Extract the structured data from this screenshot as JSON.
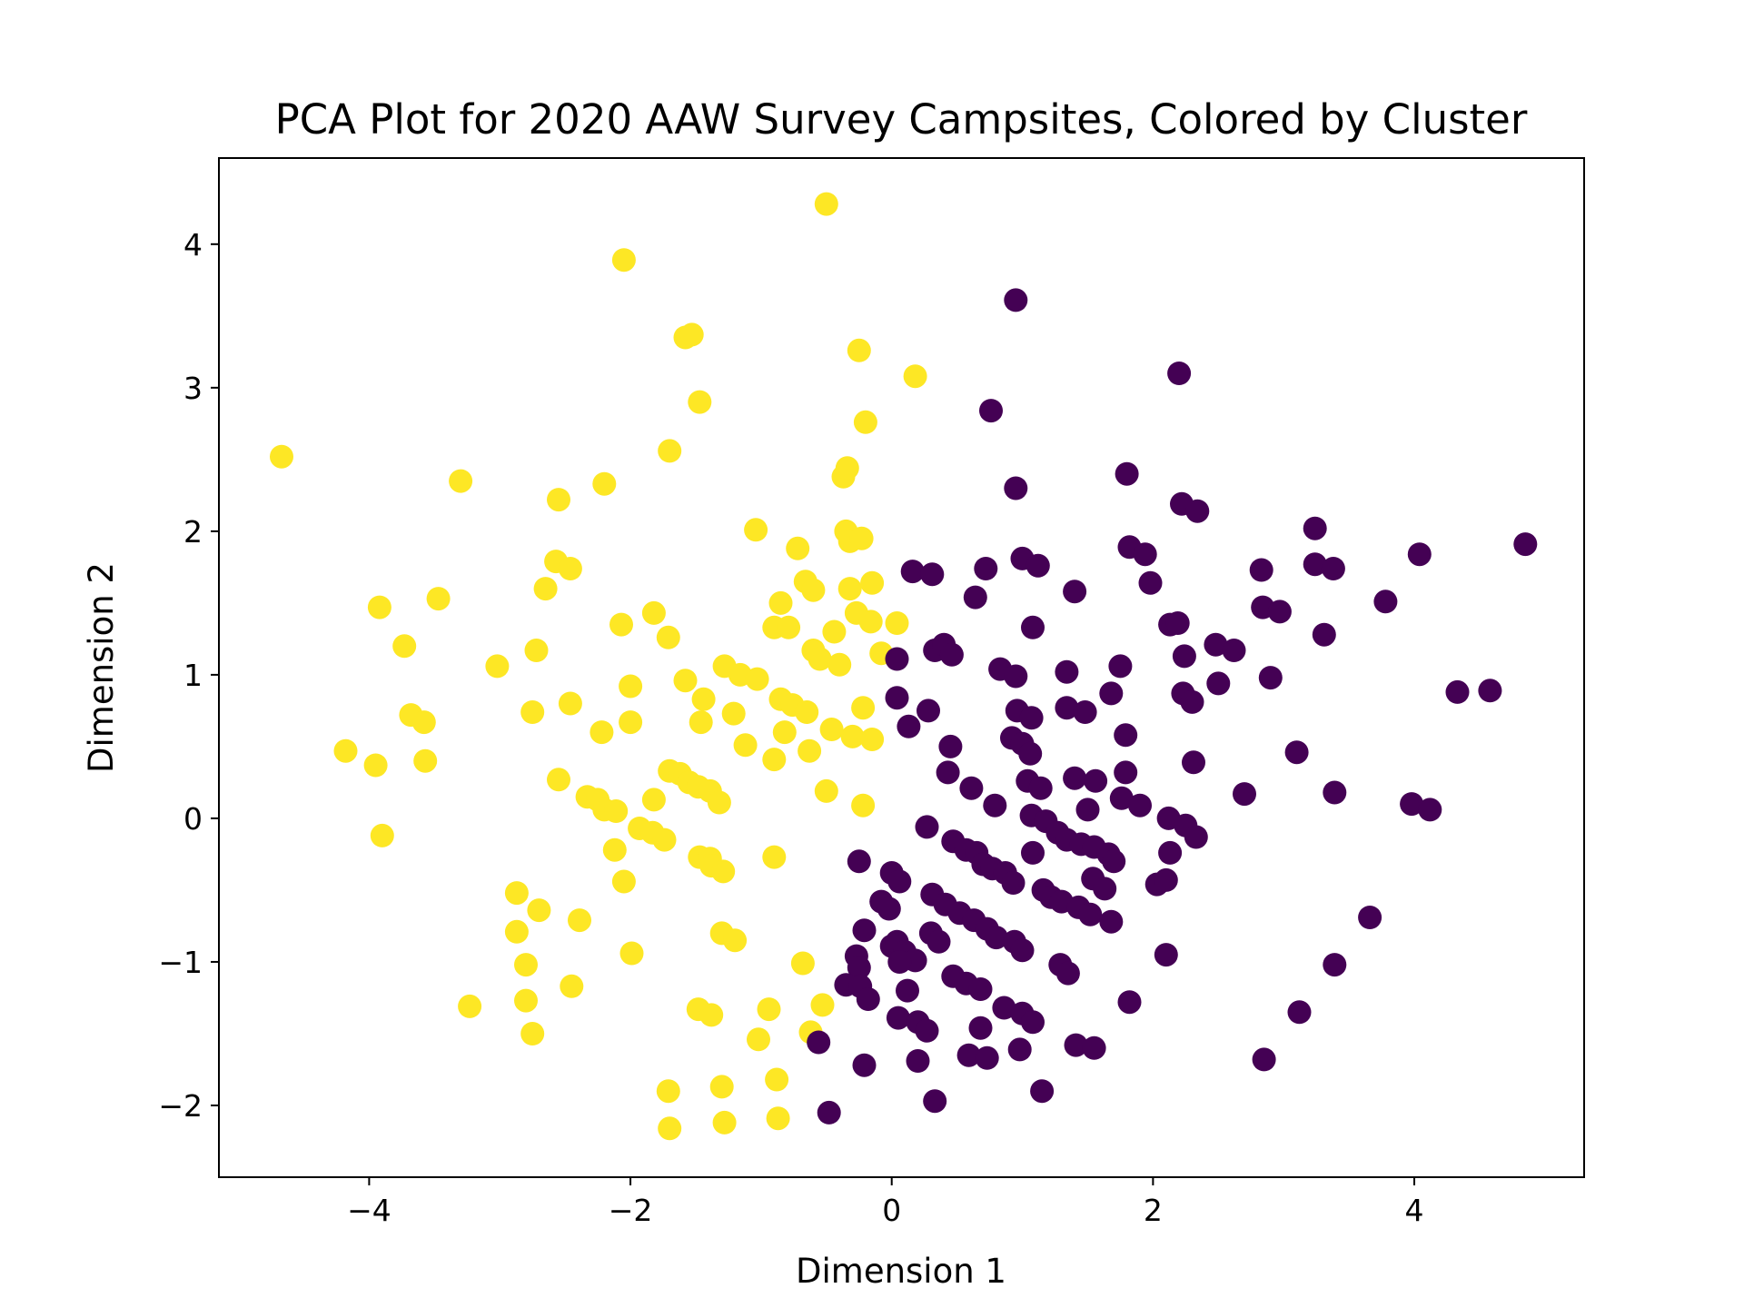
{
  "chart_data": {
    "type": "scatter",
    "title": "PCA Plot for 2020 AAW Survey Campsites, Colored by Cluster",
    "xlabel": "Dimension 1",
    "ylabel": "Dimension 2",
    "xlim": [
      -5.15,
      5.3
    ],
    "ylim": [
      -2.5,
      4.6
    ],
    "x_ticks": [
      -4,
      -2,
      0,
      2,
      4
    ],
    "x_tick_labels": [
      "−4",
      "−2",
      "0",
      "2",
      "4"
    ],
    "y_ticks": [
      -2,
      -1,
      0,
      1,
      2,
      3,
      4
    ],
    "y_tick_labels": [
      "−2",
      "−1",
      "0",
      "1",
      "2",
      "3",
      "4"
    ],
    "grid": false,
    "legend": "none",
    "series": [
      {
        "color": "#fde725",
        "points": [
          [
            -4.67,
            2.52
          ],
          [
            -3.92,
            1.47
          ],
          [
            -3.47,
            1.53
          ],
          [
            -3.3,
            2.35
          ],
          [
            -3.73,
            1.2
          ],
          [
            -3.68,
            0.72
          ],
          [
            -3.58,
            0.67
          ],
          [
            -3.57,
            0.4
          ],
          [
            -4.18,
            0.47
          ],
          [
            -3.95,
            0.37
          ],
          [
            -3.9,
            -0.12
          ],
          [
            -3.23,
            -1.31
          ],
          [
            -3.02,
            1.06
          ],
          [
            -2.87,
            -0.52
          ],
          [
            -2.87,
            -0.79
          ],
          [
            -2.8,
            -1.02
          ],
          [
            -2.8,
            -1.27
          ],
          [
            -2.75,
            -1.5
          ],
          [
            -2.7,
            -0.64
          ],
          [
            -2.72,
            1.17
          ],
          [
            -2.75,
            0.74
          ],
          [
            -2.65,
            1.6
          ],
          [
            -2.57,
            1.79
          ],
          [
            -2.46,
            1.74
          ],
          [
            -2.55,
            2.22
          ],
          [
            -2.55,
            0.27
          ],
          [
            -2.46,
            0.8
          ],
          [
            -2.45,
            -1.17
          ],
          [
            -2.39,
            -0.71
          ],
          [
            -2.33,
            0.15
          ],
          [
            -2.25,
            0.13
          ],
          [
            -2.2,
            2.33
          ],
          [
            -2.2,
            0.06
          ],
          [
            -2.11,
            0.05
          ],
          [
            -2.22,
            0.6
          ],
          [
            -2.12,
            -0.22
          ],
          [
            -2.05,
            3.89
          ],
          [
            -2.05,
            -0.44
          ],
          [
            -1.99,
            -0.94
          ],
          [
            -2.0,
            0.92
          ],
          [
            -2.0,
            0.67
          ],
          [
            -2.07,
            1.35
          ],
          [
            -1.93,
            -0.07
          ],
          [
            -1.83,
            -0.1
          ],
          [
            -1.74,
            -0.15
          ],
          [
            -1.82,
            0.13
          ],
          [
            -1.82,
            1.43
          ],
          [
            -1.71,
            1.26
          ],
          [
            -1.7,
            2.56
          ],
          [
            -1.7,
            0.33
          ],
          [
            -1.62,
            0.31
          ],
          [
            -1.55,
            0.25
          ],
          [
            -1.48,
            0.22
          ],
          [
            -1.58,
            3.35
          ],
          [
            -1.53,
            3.37
          ],
          [
            -1.58,
            0.96
          ],
          [
            -1.47,
            2.9
          ],
          [
            -1.47,
            -0.27
          ],
          [
            -1.46,
            0.67
          ],
          [
            -1.44,
            0.83
          ],
          [
            -1.39,
            -0.28
          ],
          [
            -1.38,
            -0.33
          ],
          [
            -1.39,
            0.19
          ],
          [
            -1.32,
            0.11
          ],
          [
            -1.29,
            -0.37
          ],
          [
            -1.3,
            -0.8
          ],
          [
            -1.2,
            -0.85
          ],
          [
            -1.71,
            -1.9
          ],
          [
            -1.7,
            -2.16
          ],
          [
            -1.48,
            -1.33
          ],
          [
            -1.38,
            -1.37
          ],
          [
            -1.3,
            -1.87
          ],
          [
            -1.28,
            -2.12
          ],
          [
            -1.28,
            1.06
          ],
          [
            -1.21,
            0.73
          ],
          [
            -1.16,
            1.0
          ],
          [
            -1.12,
            0.51
          ],
          [
            -1.03,
            0.97
          ],
          [
            -1.04,
            2.01
          ],
          [
            -1.02,
            -1.54
          ],
          [
            -0.94,
            -1.33
          ],
          [
            -0.9,
            -0.27
          ],
          [
            -0.9,
            0.41
          ],
          [
            -0.9,
            1.33
          ],
          [
            -0.85,
            0.83
          ],
          [
            -0.85,
            1.5
          ],
          [
            -0.79,
            1.33
          ],
          [
            -0.82,
            0.6
          ],
          [
            -0.76,
            0.79
          ],
          [
            -0.72,
            1.88
          ],
          [
            -0.88,
            -1.82
          ],
          [
            -0.87,
            -2.09
          ],
          [
            -0.68,
            -1.01
          ],
          [
            -0.66,
            1.65
          ],
          [
            -0.65,
            0.74
          ],
          [
            -0.63,
            0.47
          ],
          [
            -0.6,
            1.17
          ],
          [
            -0.6,
            1.59
          ],
          [
            -0.62,
            -1.49
          ],
          [
            -0.55,
            1.11
          ],
          [
            -0.53,
            -1.3
          ],
          [
            -0.5,
            4.28
          ],
          [
            -0.5,
            0.19
          ],
          [
            -0.46,
            0.62
          ],
          [
            -0.44,
            1.3
          ],
          [
            -0.4,
            1.07
          ],
          [
            -0.37,
            2.38
          ],
          [
            -0.34,
            2.44
          ],
          [
            -0.35,
            2.0
          ],
          [
            -0.32,
            1.93
          ],
          [
            -0.32,
            1.6
          ],
          [
            -0.3,
            0.57
          ],
          [
            -0.27,
            1.43
          ],
          [
            -0.25,
            3.26
          ],
          [
            -0.23,
            1.95
          ],
          [
            -0.22,
            0.77
          ],
          [
            -0.22,
            0.09
          ],
          [
            -0.2,
            2.76
          ],
          [
            -0.16,
            1.37
          ],
          [
            -0.15,
            0.55
          ],
          [
            -0.15,
            1.64
          ],
          [
            -0.08,
            1.15
          ],
          [
            0.04,
            1.36
          ],
          [
            0.18,
            3.08
          ]
        ]
      },
      {
        "color": "#440154",
        "points": [
          [
            0.95,
            3.61
          ],
          [
            2.2,
            3.1
          ],
          [
            0.76,
            2.84
          ],
          [
            0.95,
            2.3
          ],
          [
            1.8,
            2.4
          ],
          [
            2.22,
            2.19
          ],
          [
            2.34,
            2.14
          ],
          [
            3.24,
            2.02
          ],
          [
            1.82,
            1.89
          ],
          [
            1.94,
            1.84
          ],
          [
            1.0,
            1.81
          ],
          [
            1.12,
            1.76
          ],
          [
            4.85,
            1.91
          ],
          [
            4.04,
            1.84
          ],
          [
            2.83,
            1.73
          ],
          [
            3.24,
            1.77
          ],
          [
            3.38,
            1.74
          ],
          [
            0.16,
            1.72
          ],
          [
            0.31,
            1.7
          ],
          [
            0.72,
            1.74
          ],
          [
            1.4,
            1.58
          ],
          [
            1.98,
            1.64
          ],
          [
            0.64,
            1.54
          ],
          [
            3.78,
            1.51
          ],
          [
            2.84,
            1.47
          ],
          [
            2.97,
            1.44
          ],
          [
            1.08,
            1.33
          ],
          [
            2.13,
            1.35
          ],
          [
            2.19,
            1.36
          ],
          [
            3.31,
            1.28
          ],
          [
            2.48,
            1.21
          ],
          [
            2.62,
            1.17
          ],
          [
            2.24,
            1.13
          ],
          [
            0.33,
            1.17
          ],
          [
            0.4,
            1.21
          ],
          [
            0.46,
            1.14
          ],
          [
            0.04,
            1.11
          ],
          [
            1.75,
            1.06
          ],
          [
            0.83,
            1.04
          ],
          [
            0.95,
            0.99
          ],
          [
            1.34,
            1.02
          ],
          [
            2.9,
            0.98
          ],
          [
            2.5,
            0.94
          ],
          [
            4.33,
            0.88
          ],
          [
            4.58,
            0.89
          ],
          [
            1.68,
            0.87
          ],
          [
            2.23,
            0.87
          ],
          [
            2.3,
            0.81
          ],
          [
            0.04,
            0.84
          ],
          [
            0.28,
            0.75
          ],
          [
            0.96,
            0.75
          ],
          [
            1.07,
            0.7
          ],
          [
            1.34,
            0.77
          ],
          [
            1.48,
            0.74
          ],
          [
            0.13,
            0.64
          ],
          [
            0.92,
            0.56
          ],
          [
            1.0,
            0.52
          ],
          [
            1.06,
            0.45
          ],
          [
            1.79,
            0.58
          ],
          [
            3.1,
            0.46
          ],
          [
            0.45,
            0.5
          ],
          [
            0.43,
            0.32
          ],
          [
            2.31,
            0.39
          ],
          [
            1.04,
            0.26
          ],
          [
            1.14,
            0.21
          ],
          [
            1.4,
            0.28
          ],
          [
            1.56,
            0.26
          ],
          [
            1.79,
            0.32
          ],
          [
            0.61,
            0.21
          ],
          [
            2.7,
            0.17
          ],
          [
            3.39,
            0.18
          ],
          [
            3.98,
            0.1
          ],
          [
            4.12,
            0.06
          ],
          [
            0.79,
            0.09
          ],
          [
            1.5,
            0.06
          ],
          [
            1.76,
            0.14
          ],
          [
            1.9,
            0.09
          ],
          [
            1.07,
            0.02
          ],
          [
            1.18,
            -0.02
          ],
          [
            2.12,
            0.0
          ],
          [
            2.25,
            -0.05
          ],
          [
            2.33,
            -0.13
          ],
          [
            1.27,
            -0.1
          ],
          [
            1.34,
            -0.15
          ],
          [
            1.45,
            -0.18
          ],
          [
            0.27,
            -0.06
          ],
          [
            0.47,
            -0.16
          ],
          [
            0.57,
            -0.22
          ],
          [
            0.65,
            -0.24
          ],
          [
            1.08,
            -0.24
          ],
          [
            1.55,
            -0.2
          ],
          [
            1.66,
            -0.25
          ],
          [
            1.7,
            -0.3
          ],
          [
            2.13,
            -0.24
          ],
          [
            0.7,
            -0.32
          ],
          [
            0.77,
            -0.35
          ],
          [
            0.87,
            -0.38
          ],
          [
            0.93,
            -0.45
          ],
          [
            1.54,
            -0.42
          ],
          [
            1.63,
            -0.49
          ],
          [
            2.03,
            -0.46
          ],
          [
            2.1,
            -0.43
          ],
          [
            0.0,
            -0.38
          ],
          [
            -0.25,
            -0.3
          ],
          [
            0.06,
            -0.44
          ],
          [
            0.31,
            -0.53
          ],
          [
            0.41,
            -0.6
          ],
          [
            0.52,
            -0.66
          ],
          [
            0.63,
            -0.71
          ],
          [
            1.16,
            -0.5
          ],
          [
            1.22,
            -0.55
          ],
          [
            1.3,
            -0.58
          ],
          [
            1.43,
            -0.62
          ],
          [
            1.52,
            -0.67
          ],
          [
            1.68,
            -0.72
          ],
          [
            3.66,
            -0.69
          ],
          [
            -0.08,
            -0.58
          ],
          [
            -0.02,
            -0.63
          ],
          [
            -0.21,
            -0.78
          ],
          [
            0.3,
            -0.8
          ],
          [
            0.36,
            -0.86
          ],
          [
            0.73,
            -0.77
          ],
          [
            0.8,
            -0.83
          ],
          [
            0.94,
            -0.86
          ],
          [
            1.0,
            -0.92
          ],
          [
            0.0,
            -0.89
          ],
          [
            0.04,
            -0.86
          ],
          [
            0.1,
            -0.93
          ],
          [
            0.18,
            -0.99
          ],
          [
            -0.27,
            -0.96
          ],
          [
            -0.25,
            -1.04
          ],
          [
            0.06,
            -1.0
          ],
          [
            -0.35,
            -1.16
          ],
          [
            -0.24,
            -1.17
          ],
          [
            -0.18,
            -1.26
          ],
          [
            1.29,
            -1.02
          ],
          [
            1.35,
            -1.08
          ],
          [
            2.1,
            -0.95
          ],
          [
            3.39,
            -1.02
          ],
          [
            0.47,
            -1.1
          ],
          [
            0.57,
            -1.15
          ],
          [
            0.68,
            -1.19
          ],
          [
            0.12,
            -1.2
          ],
          [
            0.86,
            -1.32
          ],
          [
            1.0,
            -1.36
          ],
          [
            1.08,
            -1.42
          ],
          [
            1.82,
            -1.28
          ],
          [
            3.12,
            -1.35
          ],
          [
            0.05,
            -1.39
          ],
          [
            0.2,
            -1.42
          ],
          [
            0.27,
            -1.48
          ],
          [
            0.68,
            -1.46
          ],
          [
            -0.56,
            -1.56
          ],
          [
            1.41,
            -1.58
          ],
          [
            1.55,
            -1.6
          ],
          [
            0.59,
            -1.65
          ],
          [
            0.73,
            -1.67
          ],
          [
            0.98,
            -1.61
          ],
          [
            0.2,
            -1.69
          ],
          [
            -0.21,
            -1.72
          ],
          [
            2.85,
            -1.68
          ],
          [
            1.15,
            -1.9
          ],
          [
            0.33,
            -1.97
          ],
          [
            -0.48,
            -2.05
          ]
        ]
      }
    ]
  }
}
